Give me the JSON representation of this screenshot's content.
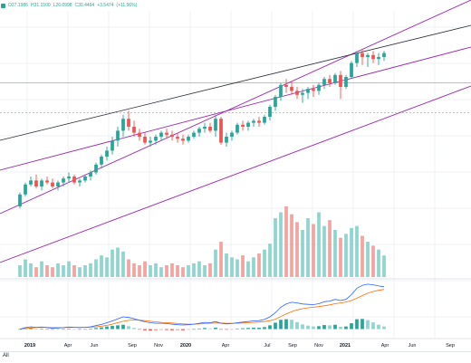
{
  "header": {
    "ohlc": [
      "O27.1986",
      "H31.1500",
      "L26.0998",
      "C30.4464",
      "+3.5474",
      "(+11.96%)"
    ]
  },
  "footer": {
    "range_label": "All"
  },
  "colors": {
    "up": "#26a69a",
    "down": "#ef5350",
    "up_vol": "#8fd4cf",
    "down_vol": "#f3a3a0",
    "channel": "#9c27b0",
    "trend": "#2a2e39",
    "macd": "#2962ff",
    "signal": "#ff6d00",
    "hline": "#a8a8a8",
    "grid": "#eef0f3",
    "axis_text": "#131722"
  },
  "chart_data": [
    {
      "type": "candlestick",
      "x_axis_labels": [
        "2019",
        "Apr",
        "Jun",
        "Sep",
        "Nov",
        "2020",
        "Apr",
        "Jul",
        "Sep",
        "Nov",
        "2021",
        "Apr",
        "Jun",
        "Sep"
      ],
      "y_range": [
        0,
        100
      ],
      "price_lines": [
        {
          "value": 82,
          "style": "solid"
        },
        {
          "value": 67,
          "style": "dashed"
        }
      ],
      "candles": [
        [
          20,
          27,
          19,
          26
        ],
        [
          26,
          32,
          25,
          31
        ],
        [
          31,
          35,
          30,
          33
        ],
        [
          33,
          36,
          29,
          30
        ],
        [
          30,
          34,
          28,
          33
        ],
        [
          33,
          35,
          31,
          32
        ],
        [
          32,
          34,
          29,
          30
        ],
        [
          30,
          33,
          28,
          32
        ],
        [
          32,
          35,
          30,
          34
        ],
        [
          34,
          37,
          32,
          35
        ],
        [
          35,
          36,
          31,
          32
        ],
        [
          32,
          34,
          30,
          33
        ],
        [
          33,
          36,
          32,
          35
        ],
        [
          35,
          38,
          33,
          37
        ],
        [
          37,
          42,
          36,
          41
        ],
        [
          41,
          46,
          39,
          45
        ],
        [
          45,
          50,
          43,
          48
        ],
        [
          48,
          55,
          46,
          53
        ],
        [
          53,
          60,
          50,
          58
        ],
        [
          58,
          66,
          55,
          64
        ],
        [
          64,
          68,
          58,
          60
        ],
        [
          60,
          63,
          55,
          57
        ],
        [
          57,
          59,
          53,
          55
        ],
        [
          55,
          57,
          51,
          52
        ],
        [
          52,
          55,
          50,
          53
        ],
        [
          53,
          56,
          51,
          55
        ],
        [
          55,
          58,
          53,
          57
        ],
        [
          57,
          59,
          54,
          56
        ],
        [
          56,
          58,
          53,
          55
        ],
        [
          55,
          57,
          52,
          54
        ],
        [
          54,
          56,
          51,
          53
        ],
        [
          53,
          56,
          52,
          55
        ],
        [
          55,
          58,
          54,
          57
        ],
        [
          57,
          60,
          55,
          59
        ],
        [
          59,
          62,
          57,
          60
        ],
        [
          60,
          62,
          57,
          58
        ],
        [
          58,
          66,
          55,
          64
        ],
        [
          64,
          65,
          51,
          52
        ],
        [
          52,
          57,
          50,
          55
        ],
        [
          55,
          58,
          53,
          57
        ],
        [
          57,
          62,
          56,
          61
        ],
        [
          61,
          63,
          58,
          60
        ],
        [
          60,
          63,
          58,
          62
        ],
        [
          62,
          64,
          60,
          63
        ],
        [
          63,
          65,
          60,
          62
        ],
        [
          62,
          66,
          61,
          65
        ],
        [
          65,
          71,
          63,
          70
        ],
        [
          70,
          76,
          68,
          75
        ],
        [
          75,
          82,
          73,
          81
        ],
        [
          81,
          84,
          77,
          80
        ],
        [
          80,
          83,
          76,
          78
        ],
        [
          78,
          80,
          74,
          76
        ],
        [
          76,
          79,
          72,
          77
        ],
        [
          77,
          80,
          74,
          79
        ],
        [
          79,
          81,
          75,
          78
        ],
        [
          78,
          82,
          76,
          81
        ],
        [
          81,
          85,
          79,
          84
        ],
        [
          84,
          86,
          80,
          82
        ],
        [
          82,
          87,
          81,
          86
        ],
        [
          86,
          88,
          74,
          80
        ],
        [
          80,
          86,
          79,
          85
        ],
        [
          85,
          93,
          84,
          92
        ],
        [
          92,
          98,
          90,
          97
        ],
        [
          97,
          99,
          91,
          95
        ],
        [
          95,
          97,
          90,
          96
        ],
        [
          96,
          98,
          92,
          94
        ],
        [
          94,
          97,
          91,
          95
        ],
        [
          95,
          98,
          93,
          97
        ]
      ],
      "volume": [
        6,
        9,
        7,
        5,
        8,
        6,
        5,
        7,
        6,
        8,
        6,
        5,
        6,
        7,
        9,
        11,
        10,
        14,
        15,
        13,
        9,
        7,
        6,
        8,
        6,
        7,
        5,
        6,
        7,
        6,
        5,
        6,
        7,
        8,
        6,
        7,
        14,
        18,
        12,
        10,
        9,
        11,
        8,
        10,
        12,
        14,
        17,
        30,
        33,
        36,
        32,
        28,
        24,
        30,
        27,
        33,
        26,
        29,
        24,
        20,
        22,
        25,
        26,
        21,
        18,
        16,
        14,
        11
      ],
      "macd": [
        0,
        0.5,
        0.8,
        0.6,
        0.7,
        0.5,
        0.3,
        0.4,
        0.5,
        0.7,
        0.6,
        0.5,
        0.6,
        0.8,
        1.2,
        1.6,
        2.2,
        2.8,
        3.5,
        4.2,
        4.0,
        3.6,
        3.0,
        2.5,
        2.2,
        2.0,
        2.0,
        1.9,
        1.7,
        1.5,
        1.4,
        1.5,
        1.7,
        2.0,
        2.3,
        2.2,
        2.6,
        2.0,
        1.8,
        1.9,
        2.2,
        2.4,
        2.6,
        2.8,
        2.9,
        3.3,
        4.2,
        5.6,
        7.5,
        8.6,
        9.2,
        9.0,
        8.6,
        8.5,
        8.4,
        8.7,
        9.4,
        9.6,
        10.2,
        9.8,
        10.2,
        11.8,
        14.0,
        15.0,
        15.4,
        15.2,
        14.8,
        14.5
      ],
      "signal": [
        0,
        0.2,
        0.4,
        0.5,
        0.6,
        0.6,
        0.5,
        0.5,
        0.5,
        0.6,
        0.6,
        0.6,
        0.6,
        0.7,
        0.8,
        1.0,
        1.3,
        1.7,
        2.2,
        2.7,
        3.0,
        3.2,
        3.1,
        2.9,
        2.7,
        2.5,
        2.3,
        2.2,
        2.1,
        1.9,
        1.8,
        1.7,
        1.7,
        1.8,
        1.9,
        2.0,
        2.1,
        2.1,
        2.0,
        2.0,
        2.0,
        2.1,
        2.2,
        2.3,
        2.4,
        2.6,
        2.9,
        3.4,
        4.3,
        5.2,
        6.0,
        6.6,
        7.0,
        7.3,
        7.5,
        7.7,
        8.0,
        8.3,
        8.7,
        9.0,
        9.3,
        9.8,
        10.6,
        11.5,
        12.3,
        12.9,
        13.3,
        13.6
      ],
      "macd_range": [
        -2,
        16
      ]
    }
  ]
}
